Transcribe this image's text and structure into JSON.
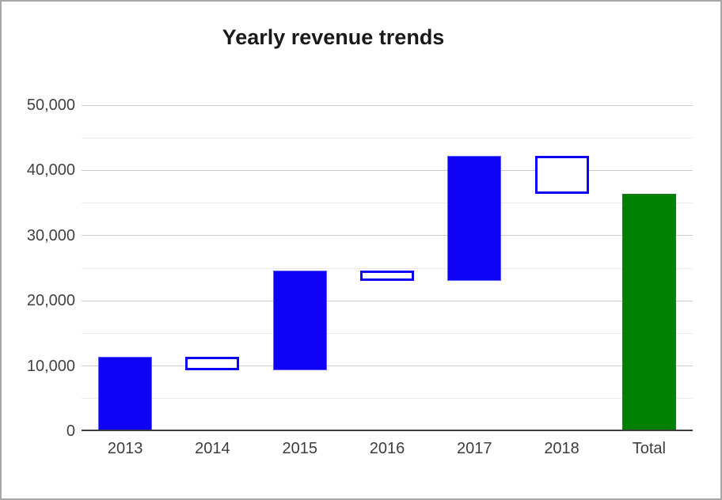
{
  "title": "Yearly revenue trends",
  "chart_data": {
    "type": "bar",
    "subtype": "waterfall",
    "title": "Yearly revenue trends",
    "legend": "none",
    "grid": true,
    "categories": [
      "2013",
      "2014",
      "2015",
      "2016",
      "2017",
      "2018",
      "Total"
    ],
    "bars": [
      {
        "label": "2013",
        "start": 0,
        "end": 11400,
        "change": 11400,
        "kind": "rising"
      },
      {
        "label": "2014",
        "start": 11400,
        "end": 9400,
        "change": -2000,
        "kind": "falling"
      },
      {
        "label": "2015",
        "start": 9400,
        "end": 24600,
        "change": 15200,
        "kind": "rising"
      },
      {
        "label": "2016",
        "start": 24600,
        "end": 23000,
        "change": -1600,
        "kind": "falling"
      },
      {
        "label": "2017",
        "start": 23000,
        "end": 42200,
        "change": 19200,
        "kind": "rising"
      },
      {
        "label": "2018",
        "start": 42200,
        "end": 36400,
        "change": -5800,
        "kind": "falling"
      },
      {
        "label": "Total",
        "start": 0,
        "end": 36400,
        "change": 36400,
        "kind": "total"
      }
    ],
    "y_axis": {
      "min": 0,
      "max": 50000,
      "major_step": 10000,
      "minor_step": 5000,
      "ticks": [
        {
          "value": 0,
          "label": "0"
        },
        {
          "value": 10000,
          "label": "10,000"
        },
        {
          "value": 20000,
          "label": "20,000"
        },
        {
          "value": 30000,
          "label": "30,000"
        },
        {
          "value": 40000,
          "label": "40,000"
        },
        {
          "value": 50000,
          "label": "50,000"
        }
      ]
    },
    "colors": {
      "rising_fill": "#1003f5",
      "falling_fill": "#ffffff",
      "falling_border": "#1003f5",
      "total_fill": "#008000",
      "major_gridline": "#cccccc",
      "minor_gridline": "#ebebeb",
      "axis_line": "#3c3c3c",
      "axis_label": "#424242",
      "title_color": "#191919",
      "window_border": "#a6a6a6",
      "background": "#ffffff"
    }
  }
}
